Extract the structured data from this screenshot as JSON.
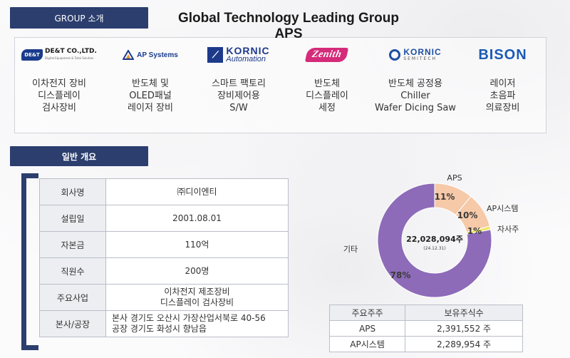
{
  "header": {
    "group_label": "GROUP 소개",
    "title": "Global Technology Leading Group APS"
  },
  "companies": [
    {
      "logo": "DE&T CO.,LTD.",
      "logo_mark": "DE&T",
      "logo_sub": "Digital Equipment & Total Solution",
      "desc": "이차전지 장비\n디스플레이\n검사장비",
      "brand_color": "#1a3b8c"
    },
    {
      "logo": "AP Systems",
      "desc": "반도체 및\nOLED패널\n레이저 장비",
      "brand_color": "#1a3b8c"
    },
    {
      "logo": "KORNIC",
      "logo_sub": "Automation",
      "desc": "스마트 팩토리\n장비제어용\nS/W",
      "brand_color": "#1d3a8a"
    },
    {
      "logo": "Zenith",
      "desc": "반도체\n디스플레이\n세정",
      "brand_color": "#d42b7a"
    },
    {
      "logo": "KORNIC",
      "logo_sub": "SEMITECH",
      "desc": "반도체 공정용\nChiller\nWafer Dicing Saw",
      "brand_color": "#1d4fa0"
    },
    {
      "logo": "BISON",
      "desc": "레이저\n초음파\n의료장비",
      "brand_color": "#1a5bb5"
    }
  ],
  "overview": {
    "label": "일반 개요",
    "rows": [
      {
        "key": "회사명",
        "value": "㈜디이엔티"
      },
      {
        "key": "설립일",
        "value": "2001.08.01"
      },
      {
        "key": "자본금",
        "value": "110억"
      },
      {
        "key": "직원수",
        "value": "200명"
      },
      {
        "key": "주요사업",
        "value": "이차전지 제조장비\n디스플레이 검사장비"
      },
      {
        "key": "본사/공장",
        "value": "본사 경기도 오산시 가장산업서북로 40-56\n공장 경기도 화성시 향남읍"
      }
    ]
  },
  "chart_data": {
    "type": "pie",
    "donut": true,
    "center_value": "22,028,094주",
    "center_note": "(24.12.31)",
    "slices": [
      {
        "label": "APS",
        "value": 11,
        "display": "11%",
        "color": "#f6c9a8"
      },
      {
        "label": "AP시스템",
        "value": 10,
        "display": "10%",
        "color": "#f6c9a8"
      },
      {
        "label": "자사주",
        "value": 1,
        "display": "1%",
        "color": "#f3e36b"
      },
      {
        "label": "기타",
        "value": 78,
        "display": "78%",
        "color": "#8d6bb8"
      }
    ]
  },
  "shareholders": {
    "headers": [
      "주요주주",
      "보유주식수"
    ],
    "rows": [
      {
        "name": "APS",
        "shares": "2,391,552 주"
      },
      {
        "name": "AP시스템",
        "shares": "2,289,954 주"
      }
    ]
  },
  "colors": {
    "navy": "#2b3e6e",
    "purple": "#8d6bb8",
    "peach": "#f6c9a8",
    "yellow": "#f3e36b"
  }
}
